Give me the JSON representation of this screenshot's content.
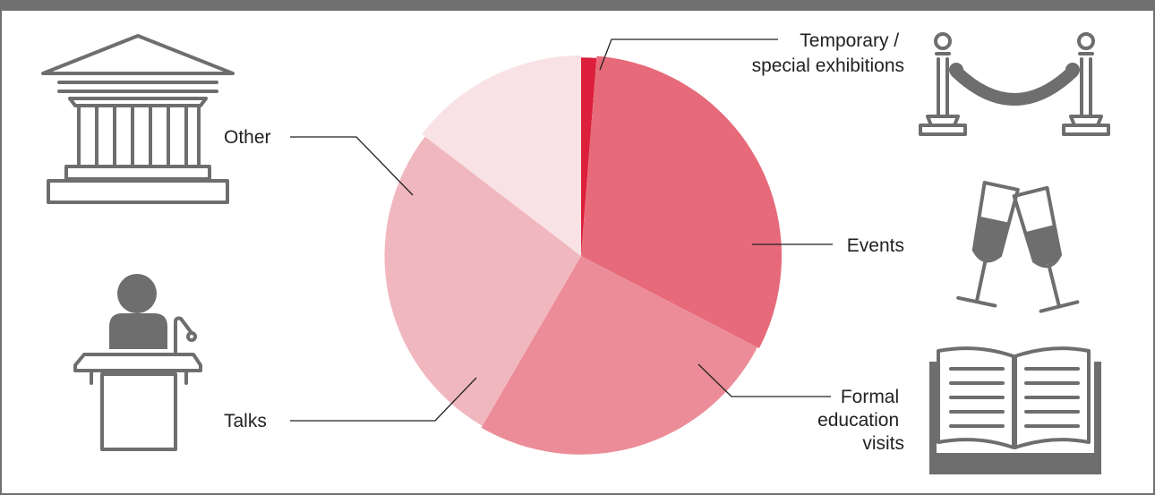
{
  "chart_data": {
    "type": "pie",
    "title": "",
    "start_angle_deg": 0,
    "direction": "clockwise",
    "variable_radius": true,
    "slices": [
      {
        "label": "Temporary / special exhibitions",
        "label_lines": [
          "Temporary /",
          "special exhibitions"
        ],
        "value": 4,
        "radius_rel": 0.99,
        "color": "#dc1f3a"
      },
      {
        "label": "Events",
        "label_lines": [
          "Events"
        ],
        "value": 101,
        "radius_rel": 1.0,
        "color": "#e66a7a"
      },
      {
        "label": "Formal education visits",
        "label_lines": [
          "Formal",
          "education",
          "visits"
        ],
        "value": 83,
        "radius_rel": 0.99,
        "color": "#ec8c98"
      },
      {
        "label": "Talks",
        "label_lines": [
          "Talks"
        ],
        "value": 87,
        "radius_rel": 0.98,
        "color": "#f1b7be"
      },
      {
        "label": "Other",
        "label_lines": [
          "Other"
        ],
        "value": 47,
        "radius_rel": 1.0,
        "color": "#f8e2e5"
      }
    ]
  },
  "icons": [
    "museum-building-icon",
    "speaker-podium-icon",
    "rope-barrier-icon",
    "champagne-glasses-icon",
    "open-book-icon"
  ],
  "colors": {
    "frame": "#707070",
    "icon": "#6e6e6e",
    "label": "#222222"
  }
}
